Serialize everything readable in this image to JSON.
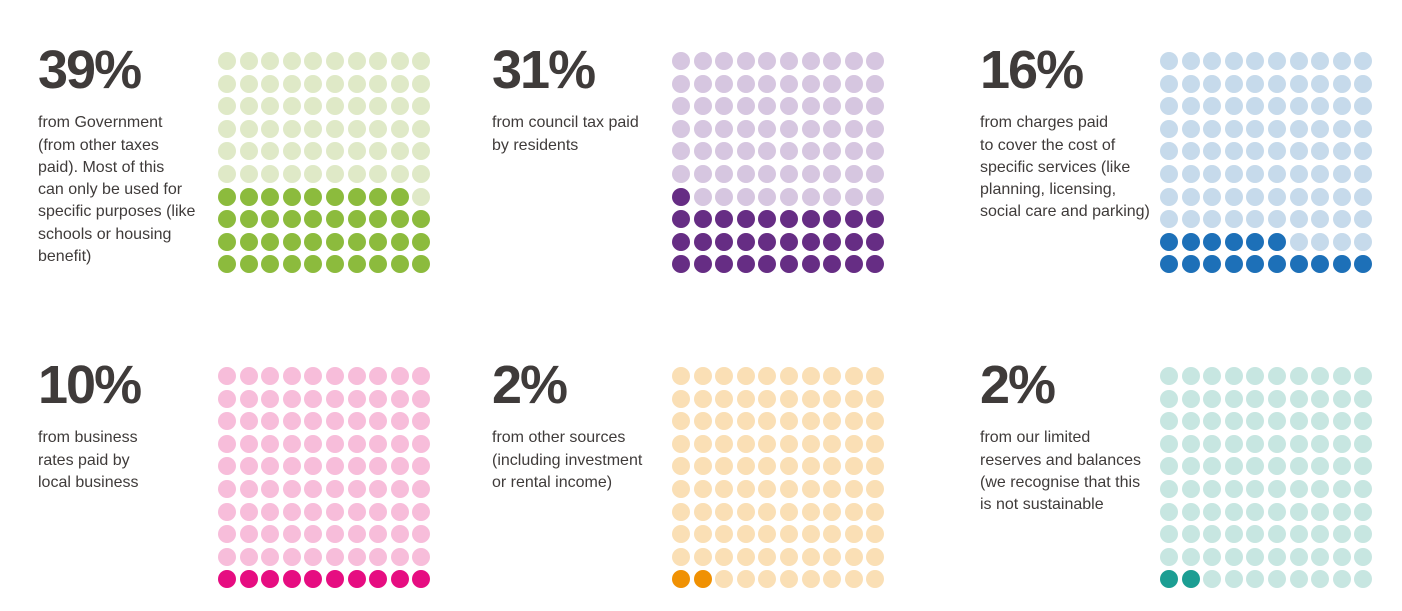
{
  "colors": {
    "text": "#3f3b3a",
    "background": "#ffffff"
  },
  "chart_data": {
    "type": "waffle",
    "grid": {
      "rows": 10,
      "cols": 10,
      "dot_total": 100
    },
    "layout": "2 rows x 3 columns of waffle grids, percentage and caption at left of each grid",
    "fill_rule": "filled dots counted from bottom row upward, left to right within the partial row",
    "series": [
      {
        "name": "government",
        "percent_label": "39%",
        "value": 39,
        "description_lines": [
          "from Government",
          "(from other taxes",
          "paid). Most of this",
          "can only be used for",
          "specific purposes (like",
          "schools or housing",
          "benefit)"
        ],
        "color_filled": "#8cbb3d",
        "color_empty": "#dfe9c7"
      },
      {
        "name": "council-tax",
        "percent_label": "31%",
        "value": 31,
        "description_lines": [
          "from council tax paid",
          "by residents"
        ],
        "color_filled": "#662d84",
        "color_empty": "#d6c6e0"
      },
      {
        "name": "service-charges",
        "percent_label": "16%",
        "value": 16,
        "description_lines": [
          "from charges paid",
          "to cover the cost of",
          "specific services (like",
          "planning, licensing,",
          "social care and parking)"
        ],
        "color_filled": "#1d70b8",
        "color_empty": "#c6daeb"
      },
      {
        "name": "business-rates",
        "percent_label": "10%",
        "value": 10,
        "description_lines": [
          "from business",
          "rates paid by",
          "local business"
        ],
        "color_filled": "#e60d81",
        "color_empty": "#f7bdda"
      },
      {
        "name": "other-sources",
        "percent_label": "2%",
        "value": 2,
        "description_lines": [
          "from other sources",
          "(including investment",
          "or rental income)"
        ],
        "color_filled": "#f09103",
        "color_empty": "#fadfb5"
      },
      {
        "name": "reserves",
        "percent_label": "2%",
        "value": 2,
        "description_lines": [
          "from our limited",
          "reserves and balances",
          "(we recognise that this",
          "is not sustainable"
        ],
        "color_filled": "#1c9e93",
        "color_empty": "#c7e6e1"
      }
    ]
  }
}
